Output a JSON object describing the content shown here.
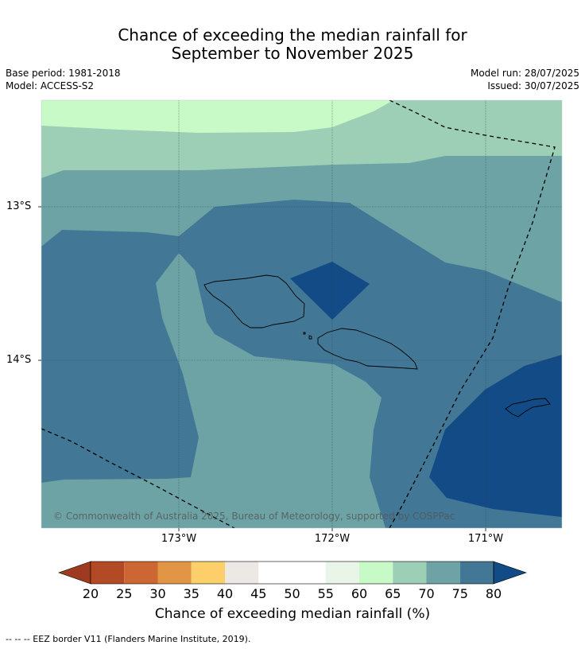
{
  "title_line1": "Chance of exceeding the median rainfall for",
  "title_line2": "September to November 2025",
  "base_period": "Base period: 1981-2018",
  "model": "Model: ACCESS-S2",
  "model_run": "Model run: 28/07/2025",
  "issued": "Issued: 30/07/2025",
  "x_ticks": [
    "173°W",
    "172°W",
    "171°W"
  ],
  "y_ticks": [
    "13°S",
    "14°S"
  ],
  "credit": "© Commonwealth of Australia 2025, Bureau of Meteorology, supported by COSPPac",
  "colorbar": {
    "labels": [
      "20",
      "25",
      "30",
      "35",
      "40",
      "45",
      "50",
      "55",
      "60",
      "65",
      "70",
      "75",
      "80"
    ],
    "colors": [
      "#9e3a1f",
      "#b34a26",
      "#cc6633",
      "#e09645",
      "#fccf6b",
      "#ece8e4",
      "#ffffff",
      "#ffffff",
      "#e8f5e8",
      "#c8fac8",
      "#9ccfb6",
      "#6da3a5",
      "#427896",
      "#134b87"
    ],
    "title": "Chance of exceeding median rainfall (%)"
  },
  "map_colors": {
    "c60_65": "#c8fac8",
    "c65_70": "#9ccfb6",
    "c70_75": "#6da3a5",
    "c75_80": "#427896",
    "c80": "#134b87"
  },
  "footnote": "--  --  -- EEZ border V11 (Flanders Marine Institute, 2019)."
}
